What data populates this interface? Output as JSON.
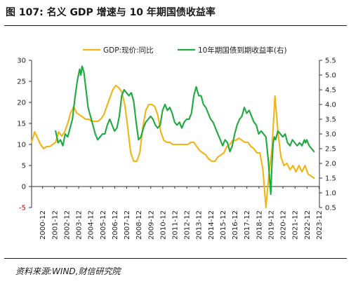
{
  "figure": {
    "title": "图 107:  名义 GDP 增速与 10 年期国债收益率",
    "source": "资料来源:WIND,财信研究院"
  },
  "colors": {
    "gdp": "#F2B515",
    "bond": "#1DAA3E",
    "axis": "#333333",
    "negative_tick": "#C00000"
  },
  "chart_data": {
    "type": "line",
    "x_ticks": [
      "2000-12",
      "2001-12",
      "2002-12",
      "2003-12",
      "2004-12",
      "2005-12",
      "2006-12",
      "2007-12",
      "2008-12",
      "2009-12",
      "2010-12",
      "2011-12",
      "2012-12",
      "2013-12",
      "2014-12",
      "2015-12",
      "2016-12",
      "2017-12",
      "2018-12",
      "2019-12",
      "2020-12",
      "2021-12",
      "2022-12",
      "2023-12"
    ],
    "y_left": {
      "range": [
        -5,
        30
      ],
      "ticks": [
        -5,
        0,
        5,
        10,
        15,
        20,
        25,
        30
      ]
    },
    "y_right": {
      "range": [
        0.5,
        5.5
      ],
      "ticks": [
        0.5,
        1.0,
        1.5,
        2.0,
        2.5,
        3.0,
        3.5,
        4.0,
        4.5,
        5.0,
        5.5
      ],
      "tick_labels": [
        "0.5",
        "1.0",
        "1.5",
        "2.0",
        "2.5",
        "3.0",
        "3.5",
        "4.0",
        "4.5",
        "5.0",
        "5.5"
      ]
    },
    "legend_position": "top",
    "grid": false,
    "series": [
      {
        "name": "GDP:现价:同比",
        "axis": "left",
        "color": "#F2B515",
        "x": [
          2000.0,
          2000.25,
          2000.5,
          2000.75,
          2001.0,
          2001.25,
          2001.5,
          2001.75,
          2002.0,
          2002.25,
          2002.5,
          2002.75,
          2003.0,
          2003.25,
          2003.5,
          2003.75,
          2004.0,
          2004.25,
          2004.5,
          2004.75,
          2005.0,
          2005.25,
          2005.5,
          2005.75,
          2006.0,
          2006.25,
          2006.5,
          2006.75,
          2007.0,
          2007.25,
          2007.5,
          2007.75,
          2008.0,
          2008.25,
          2008.5,
          2008.75,
          2009.0,
          2009.25,
          2009.5,
          2009.75,
          2010.0,
          2010.25,
          2010.5,
          2010.75,
          2011.0,
          2011.25,
          2011.5,
          2011.75,
          2012.0,
          2012.25,
          2012.5,
          2012.75,
          2013.0,
          2013.25,
          2013.5,
          2013.75,
          2014.0,
          2014.25,
          2014.5,
          2014.75,
          2015.0,
          2015.25,
          2015.5,
          2015.75,
          2016.0,
          2016.25,
          2016.5,
          2016.75,
          2017.0,
          2017.25,
          2017.5,
          2017.75,
          2018.0,
          2018.25,
          2018.5,
          2018.75,
          2019.0,
          2019.25,
          2019.5,
          2019.75,
          2020.0,
          2020.25,
          2020.5,
          2020.75,
          2021.0,
          2021.25,
          2021.5,
          2021.75,
          2022.0,
          2022.25,
          2022.5,
          2022.75,
          2023.0,
          2023.25,
          2023.5
        ],
        "y": [
          10.5,
          13.0,
          11.5,
          10.0,
          9.0,
          9.5,
          9.5,
          10.0,
          10.5,
          13.0,
          12.0,
          13.0,
          15.0,
          17.5,
          19.0,
          17.5,
          17.0,
          16.5,
          16.0,
          16.0,
          15.5,
          15.5,
          15.5,
          16.0,
          17.0,
          19.0,
          21.0,
          23.0,
          24.0,
          23.5,
          22.5,
          19.5,
          14.0,
          8.0,
          6.0,
          6.0,
          8.0,
          14.0,
          18.0,
          19.5,
          19.5,
          19.0,
          17.0,
          13.0,
          11.0,
          10.5,
          10.5,
          10.0,
          10.0,
          10.0,
          10.0,
          10.0,
          10.0,
          10.5,
          10.5,
          9.5,
          8.5,
          8.0,
          7.5,
          6.5,
          6.0,
          6.0,
          7.0,
          7.5,
          8.0,
          9.5,
          10.0,
          11.0,
          11.0,
          11.5,
          11.0,
          10.5,
          10.5,
          9.5,
          9.0,
          8.0,
          8.0,
          4.0,
          -5.0,
          3.0,
          9.0,
          21.5,
          13.0,
          7.0,
          5.0,
          5.5,
          4.0,
          5.0,
          3.5,
          5.0,
          3.5,
          5.0,
          3.0,
          2.5,
          2.0
        ]
      },
      {
        "name": "10年期国债到期收益率(右)",
        "axis": "right",
        "color": "#1DAA3E",
        "x": [
          2002.0,
          2002.2,
          2002.4,
          2002.6,
          2002.8,
          2003.0,
          2003.2,
          2003.4,
          2003.6,
          2003.8,
          2004.0,
          2004.1,
          2004.2,
          2004.35,
          2004.5,
          2004.7,
          2004.9,
          2005.1,
          2005.3,
          2005.5,
          2005.7,
          2005.9,
          2006.1,
          2006.3,
          2006.5,
          2006.7,
          2006.9,
          2007.1,
          2007.3,
          2007.5,
          2007.7,
          2007.9,
          2008.1,
          2008.3,
          2008.5,
          2008.7,
          2008.9,
          2009.1,
          2009.3,
          2009.5,
          2009.7,
          2009.9,
          2010.1,
          2010.3,
          2010.5,
          2010.7,
          2010.9,
          2011.1,
          2011.3,
          2011.5,
          2011.7,
          2011.9,
          2012.1,
          2012.3,
          2012.5,
          2012.7,
          2012.9,
          2013.1,
          2013.3,
          2013.5,
          2013.7,
          2013.9,
          2014.1,
          2014.3,
          2014.5,
          2014.7,
          2014.9,
          2015.1,
          2015.3,
          2015.5,
          2015.7,
          2015.9,
          2016.1,
          2016.3,
          2016.5,
          2016.7,
          2016.9,
          2017.1,
          2017.3,
          2017.5,
          2017.7,
          2017.9,
          2018.1,
          2018.3,
          2018.5,
          2018.7,
          2018.9,
          2019.1,
          2019.3,
          2019.5,
          2019.6,
          2019.7,
          2019.8,
          2019.9,
          2020.0,
          2020.1,
          2020.2,
          2020.3,
          2020.5,
          2020.7,
          2020.9,
          2021.1,
          2021.3,
          2021.5,
          2021.7,
          2021.9,
          2022.1,
          2022.3,
          2022.5,
          2022.6,
          2022.7,
          2022.8,
          2022.9,
          2023.1,
          2023.3,
          2023.5
        ],
        "y": [
          3.1,
          2.7,
          2.8,
          2.6,
          3.0,
          2.9,
          3.2,
          3.5,
          4.2,
          4.8,
          5.2,
          5.0,
          5.3,
          5.1,
          4.6,
          3.9,
          3.6,
          3.3,
          3.0,
          2.8,
          2.9,
          3.0,
          3.0,
          3.3,
          3.5,
          3.3,
          3.1,
          3.2,
          3.6,
          4.3,
          4.5,
          4.4,
          4.3,
          4.4,
          4.1,
          3.4,
          2.8,
          2.9,
          3.2,
          3.4,
          3.5,
          3.6,
          3.5,
          3.3,
          3.2,
          3.3,
          3.8,
          4.0,
          3.8,
          3.9,
          3.7,
          3.4,
          3.3,
          3.4,
          3.2,
          3.4,
          3.5,
          3.5,
          3.7,
          4.3,
          4.6,
          4.3,
          4.3,
          4.0,
          3.9,
          3.7,
          3.5,
          3.4,
          3.2,
          3.0,
          2.8,
          2.6,
          2.8,
          2.7,
          2.4,
          2.6,
          3.0,
          3.3,
          3.5,
          3.6,
          3.9,
          3.7,
          3.8,
          3.6,
          3.4,
          3.3,
          3.0,
          3.1,
          3.0,
          2.9,
          2.5,
          2.1,
          1.5,
          0.95,
          2.0,
          2.7,
          2.9,
          2.8,
          3.1,
          3.0,
          2.9,
          3.0,
          2.7,
          2.6,
          2.8,
          2.7,
          2.6,
          2.7,
          2.6,
          2.7,
          2.8,
          2.7,
          2.8,
          2.6,
          2.5,
          2.4
        ]
      }
    ]
  }
}
